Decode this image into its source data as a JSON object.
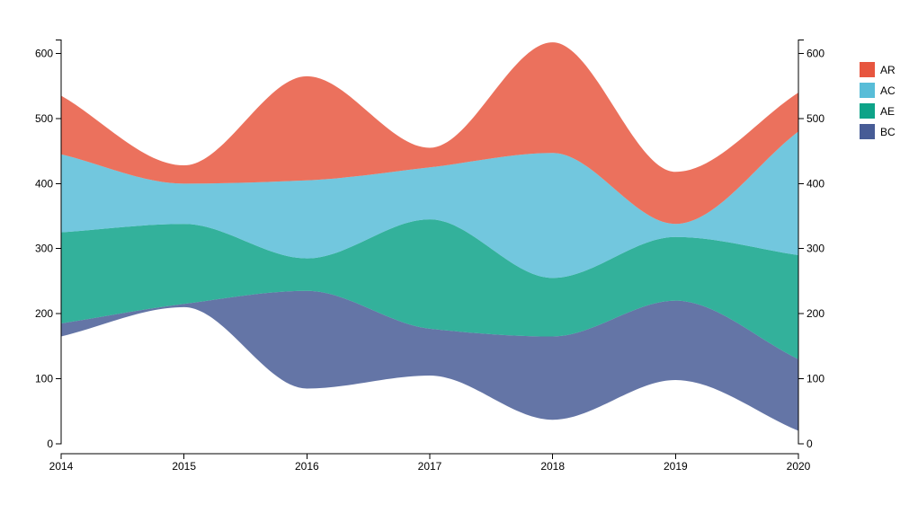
{
  "chart_data": {
    "type": "area",
    "subtype": "stacked-streamgraph",
    "x": [
      "2014",
      "2015",
      "2016",
      "2017",
      "2018",
      "2019",
      "2020"
    ],
    "ylim": [
      0,
      620
    ],
    "y_ticks": [
      "0",
      "100",
      "200",
      "300",
      "400",
      "500",
      "600"
    ],
    "grid": false,
    "legend_position": "top-right",
    "series": [
      {
        "name": "BC",
        "color": "#3d5390",
        "lower": [
          165,
          210,
          85,
          105,
          37,
          98,
          20
        ],
        "upper": [
          185,
          215,
          235,
          177,
          165,
          220,
          130
        ]
      },
      {
        "name": "AE",
        "color": "#009e82",
        "lower": [
          185,
          215,
          235,
          177,
          165,
          220,
          130
        ],
        "upper": [
          325,
          338,
          285,
          345,
          255,
          318,
          290
        ]
      },
      {
        "name": "AC",
        "color": "#4fb9d6",
        "lower": [
          325,
          338,
          285,
          345,
          255,
          318,
          290
        ],
        "upper": [
          445,
          400,
          405,
          425,
          447,
          338,
          480
        ]
      },
      {
        "name": "AR",
        "color": "#e64d35",
        "lower": [
          445,
          400,
          405,
          425,
          447,
          338,
          480
        ],
        "upper": [
          535,
          428,
          565,
          455,
          617,
          418,
          540
        ]
      }
    ],
    "legend": [
      {
        "name": "AR",
        "color": "#e64d35"
      },
      {
        "name": "AC",
        "color": "#4fb9d6"
      },
      {
        "name": "AE",
        "color": "#009e82"
      },
      {
        "name": "BC",
        "color": "#3d5390"
      }
    ]
  }
}
